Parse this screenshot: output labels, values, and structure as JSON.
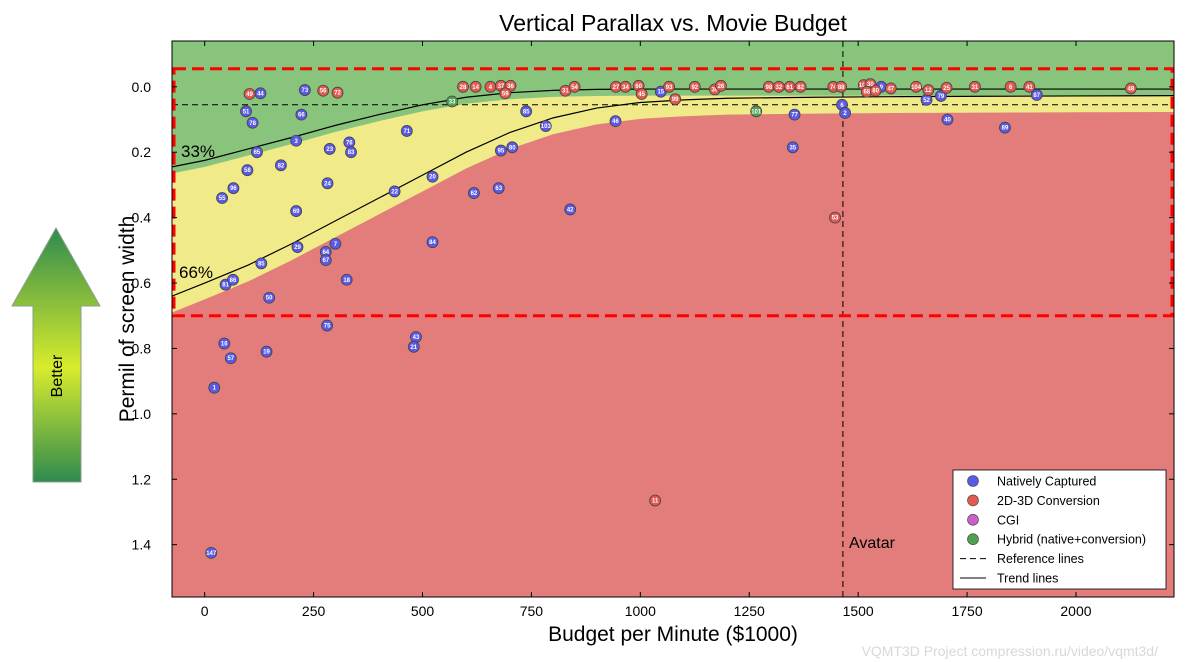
{
  "colors": {
    "natively_captured": "#5a5ae6",
    "conversion": "#e05a50",
    "cgi": "#c860c8",
    "hybrid": "#50a050",
    "bad_zone": "#e37d7b",
    "good_zone": "#7cc07a",
    "mid_zone": "#f0f08a",
    "highlight_box": "#ff0000"
  },
  "better_indicator": {
    "label": "Better",
    "icon": "up-arrow-icon"
  },
  "watermark": "VQMT3D Project compression.ru/video/vqmt3d/",
  "chart_data": {
    "type": "scatter",
    "title": "Vertical Parallax vs. Movie Budget",
    "xlabel": "Budget per Minute ($1000)",
    "ylabel": "Permil of screen width",
    "xlim": [
      -75,
      2225
    ],
    "ylim": [
      1.56,
      -0.14
    ],
    "y_inverted": true,
    "xticks": [
      0,
      250,
      500,
      750,
      1000,
      1250,
      1500,
      1750,
      2000
    ],
    "yticks": [
      0.0,
      0.2,
      0.4,
      0.6,
      0.8,
      1.0,
      1.2,
      1.4
    ],
    "ytick_labels": [
      "0.0",
      "0.2",
      "0.4",
      "0.6",
      "0.8",
      "1.0",
      "1.2",
      "1.4"
    ],
    "legend_position": "bottom-right",
    "legend": [
      {
        "label": "Natively Captured",
        "kind": "dot",
        "color_key": "natively_captured"
      },
      {
        "label": "2D-3D Conversion",
        "kind": "dot",
        "color_key": "conversion"
      },
      {
        "label": "CGI",
        "kind": "dot",
        "color_key": "cgi"
      },
      {
        "label": "Hybrid (native+conversion)",
        "kind": "dot",
        "color_key": "hybrid"
      },
      {
        "label": "Reference lines",
        "kind": "dashed"
      },
      {
        "label": "Trend lines",
        "kind": "solid"
      }
    ],
    "reference_lines": {
      "vertical_x": 1465,
      "vertical_label": "Avatar",
      "horizontal_y": 0.055
    },
    "highlight_box": {
      "x_from": -75,
      "x_to": 2225,
      "y_from": -0.055,
      "y_to": 0.7
    },
    "trend_lines": [
      {
        "name": "33%",
        "label": "33%",
        "x": [
          -75,
          0,
          100,
          200,
          300,
          400,
          500,
          600,
          700,
          800,
          900,
          1000,
          1200,
          1400,
          1600,
          1800,
          2000,
          2225
        ],
        "y": [
          0.245,
          0.225,
          0.19,
          0.155,
          0.118,
          0.085,
          0.055,
          0.032,
          0.018,
          0.011,
          0.008,
          0.007,
          0.007,
          0.007,
          0.007,
          0.007,
          0.007,
          0.007
        ]
      },
      {
        "name": "66%",
        "label": "66%",
        "x": [
          -75,
          0,
          100,
          200,
          300,
          400,
          500,
          600,
          700,
          800,
          900,
          1000,
          1100,
          1200,
          1400,
          1600,
          1800,
          2000,
          2225
        ],
        "y": [
          0.64,
          0.6,
          0.545,
          0.48,
          0.41,
          0.34,
          0.27,
          0.2,
          0.14,
          0.095,
          0.065,
          0.048,
          0.04,
          0.035,
          0.032,
          0.03,
          0.029,
          0.028,
          0.027
        ]
      }
    ],
    "points": [
      {
        "id": "1",
        "x": 22,
        "y": 0.92,
        "cat": "natively_captured"
      },
      {
        "id": "147",
        "x": 15,
        "y": 1.425,
        "cat": "natively_captured"
      },
      {
        "id": "16",
        "x": 45,
        "y": 0.785,
        "cat": "natively_captured"
      },
      {
        "id": "57",
        "x": 60,
        "y": 0.83,
        "cat": "natively_captured"
      },
      {
        "id": "19",
        "x": 142,
        "y": 0.81,
        "cat": "natively_captured"
      },
      {
        "id": "55",
        "x": 40,
        "y": 0.34,
        "cat": "natively_captured"
      },
      {
        "id": "96",
        "x": 66,
        "y": 0.31,
        "cat": "natively_captured"
      },
      {
        "id": "58",
        "x": 98,
        "y": 0.255,
        "cat": "natively_captured"
      },
      {
        "id": "81",
        "x": 48,
        "y": 0.605,
        "cat": "natively_captured"
      },
      {
        "id": "86",
        "x": 65,
        "y": 0.59,
        "cat": "natively_captured"
      },
      {
        "id": "85",
        "x": 130,
        "y": 0.54,
        "cat": "natively_captured"
      },
      {
        "id": "50",
        "x": 148,
        "y": 0.645,
        "cat": "natively_captured"
      },
      {
        "id": "29",
        "x": 213,
        "y": 0.49,
        "cat": "natively_captured"
      },
      {
        "id": "69",
        "x": 210,
        "y": 0.38,
        "cat": "natively_captured"
      },
      {
        "id": "64",
        "x": 278,
        "y": 0.505,
        "cat": "natively_captured"
      },
      {
        "id": "67",
        "x": 278,
        "y": 0.53,
        "cat": "natively_captured"
      },
      {
        "id": "7",
        "x": 300,
        "y": 0.48,
        "cat": "natively_captured"
      },
      {
        "id": "18",
        "x": 326,
        "y": 0.59,
        "cat": "natively_captured"
      },
      {
        "id": "75",
        "x": 281,
        "y": 0.73,
        "cat": "natively_captured"
      },
      {
        "id": "24",
        "x": 282,
        "y": 0.295,
        "cat": "natively_captured"
      },
      {
        "id": "22",
        "x": 436,
        "y": 0.32,
        "cat": "natively_captured"
      },
      {
        "id": "20",
        "x": 523,
        "y": 0.275,
        "cat": "natively_captured"
      },
      {
        "id": "84",
        "x": 523,
        "y": 0.475,
        "cat": "natively_captured"
      },
      {
        "id": "43",
        "x": 485,
        "y": 0.765,
        "cat": "natively_captured"
      },
      {
        "id": "21",
        "x": 480,
        "y": 0.795,
        "cat": "natively_captured"
      },
      {
        "id": "62",
        "x": 618,
        "y": 0.325,
        "cat": "natively_captured"
      },
      {
        "id": "63",
        "x": 675,
        "y": 0.31,
        "cat": "natively_captured"
      },
      {
        "id": "42",
        "x": 839,
        "y": 0.375,
        "cat": "natively_captured"
      },
      {
        "id": "82",
        "x": 175,
        "y": 0.24,
        "cat": "natively_captured"
      },
      {
        "id": "65",
        "x": 120,
        "y": 0.2,
        "cat": "natively_captured"
      },
      {
        "id": "3",
        "x": 210,
        "y": 0.165,
        "cat": "natively_captured"
      },
      {
        "id": "23",
        "x": 287,
        "y": 0.19,
        "cat": "natively_captured"
      },
      {
        "id": "76",
        "x": 332,
        "y": 0.17,
        "cat": "natively_captured"
      },
      {
        "id": "83",
        "x": 336,
        "y": 0.2,
        "cat": "natively_captured"
      },
      {
        "id": "71",
        "x": 464,
        "y": 0.135,
        "cat": "natively_captured"
      },
      {
        "id": "95",
        "x": 680,
        "y": 0.195,
        "cat": "natively_captured"
      },
      {
        "id": "80",
        "x": 706,
        "y": 0.185,
        "cat": "natively_captured"
      },
      {
        "id": "51",
        "x": 95,
        "y": 0.075,
        "cat": "natively_captured"
      },
      {
        "id": "78",
        "x": 110,
        "y": 0.11,
        "cat": "natively_captured"
      },
      {
        "id": "73",
        "x": 230,
        "y": 0.01,
        "cat": "natively_captured"
      },
      {
        "id": "44",
        "x": 128,
        "y": 0.02,
        "cat": "natively_captured"
      },
      {
        "id": "66",
        "x": 222,
        "y": 0.085,
        "cat": "natively_captured"
      },
      {
        "id": "85",
        "x": 738,
        "y": 0.075,
        "cat": "natively_captured"
      },
      {
        "id": "103",
        "x": 783,
        "y": 0.12,
        "cat": "natively_captured"
      },
      {
        "id": "46",
        "x": 943,
        "y": 0.105,
        "cat": "natively_captured"
      },
      {
        "id": "35",
        "x": 1350,
        "y": 0.185,
        "cat": "natively_captured"
      },
      {
        "id": "77",
        "x": 1354,
        "y": 0.085,
        "cat": "natively_captured"
      },
      {
        "id": "6",
        "x": 1463,
        "y": 0.055,
        "cat": "natively_captured"
      },
      {
        "id": "2",
        "x": 1470,
        "y": 0.08,
        "cat": "natively_captured"
      },
      {
        "id": "9",
        "x": 1553,
        "y": 0.0,
        "cat": "natively_captured"
      },
      {
        "id": "52",
        "x": 1657,
        "y": 0.04,
        "cat": "natively_captured"
      },
      {
        "id": "79",
        "x": 1690,
        "y": 0.028,
        "cat": "natively_captured"
      },
      {
        "id": "40",
        "x": 1705,
        "y": 0.1,
        "cat": "natively_captured"
      },
      {
        "id": "89",
        "x": 1837,
        "y": 0.125,
        "cat": "natively_captured"
      },
      {
        "id": "87",
        "x": 1910,
        "y": 0.025,
        "cat": "natively_captured"
      },
      {
        "id": "15",
        "x": 1047,
        "y": 0.015,
        "cat": "natively_captured"
      },
      {
        "id": "11",
        "x": 1034,
        "y": 1.265,
        "cat": "conversion"
      },
      {
        "id": "53",
        "x": 1447,
        "y": 0.4,
        "cat": "conversion"
      },
      {
        "id": "49",
        "x": 103,
        "y": 0.022,
        "cat": "conversion"
      },
      {
        "id": "56",
        "x": 272,
        "y": 0.012,
        "cat": "conversion"
      },
      {
        "id": "72",
        "x": 305,
        "y": 0.018,
        "cat": "conversion"
      },
      {
        "id": "28",
        "x": 593,
        "y": 0.0,
        "cat": "conversion"
      },
      {
        "id": "14",
        "x": 622,
        "y": 0.0,
        "cat": "conversion"
      },
      {
        "id": "4",
        "x": 656,
        "y": 0.0,
        "cat": "conversion"
      },
      {
        "id": "37",
        "x": 680,
        "y": -0.003,
        "cat": "conversion"
      },
      {
        "id": "36",
        "x": 702,
        "y": -0.003,
        "cat": "conversion"
      },
      {
        "id": "59",
        "x": 690,
        "y": 0.02,
        "cat": "conversion"
      },
      {
        "id": "31",
        "x": 828,
        "y": 0.012,
        "cat": "conversion"
      },
      {
        "id": "54",
        "x": 849,
        "y": 0.0,
        "cat": "conversion"
      },
      {
        "id": "27",
        "x": 944,
        "y": 0.0,
        "cat": "conversion"
      },
      {
        "id": "34",
        "x": 966,
        "y": 0.0,
        "cat": "conversion"
      },
      {
        "id": "60",
        "x": 996,
        "y": -0.003,
        "cat": "conversion"
      },
      {
        "id": "45",
        "x": 1003,
        "y": 0.022,
        "cat": "conversion"
      },
      {
        "id": "93",
        "x": 1066,
        "y": 0.0,
        "cat": "conversion"
      },
      {
        "id": "99",
        "x": 1080,
        "y": 0.038,
        "cat": "conversion"
      },
      {
        "id": "92",
        "x": 1125,
        "y": 0.0,
        "cat": "conversion"
      },
      {
        "id": "39",
        "x": 1171,
        "y": 0.008,
        "cat": "conversion"
      },
      {
        "id": "26",
        "x": 1185,
        "y": -0.003,
        "cat": "conversion"
      },
      {
        "id": "98",
        "x": 1295,
        "y": 0.0,
        "cat": "conversion"
      },
      {
        "id": "32",
        "x": 1318,
        "y": 0.0,
        "cat": "conversion"
      },
      {
        "id": "61",
        "x": 1343,
        "y": 0.0,
        "cat": "conversion"
      },
      {
        "id": "82",
        "x": 1368,
        "y": 0.0,
        "cat": "conversion"
      },
      {
        "id": "74",
        "x": 1443,
        "y": 0.0,
        "cat": "conversion"
      },
      {
        "id": "88",
        "x": 1461,
        "y": 0.0,
        "cat": "conversion"
      },
      {
        "id": "105",
        "x": 1513,
        "y": -0.005,
        "cat": "conversion"
      },
      {
        "id": "30",
        "x": 1528,
        "y": -0.008,
        "cat": "conversion"
      },
      {
        "id": "68",
        "x": 1520,
        "y": 0.015,
        "cat": "conversion"
      },
      {
        "id": "80",
        "x": 1540,
        "y": 0.012,
        "cat": "conversion"
      },
      {
        "id": "47",
        "x": 1575,
        "y": 0.005,
        "cat": "conversion"
      },
      {
        "id": "104",
        "x": 1633,
        "y": 0.0,
        "cat": "conversion"
      },
      {
        "id": "12",
        "x": 1661,
        "y": 0.01,
        "cat": "conversion"
      },
      {
        "id": "25",
        "x": 1703,
        "y": 0.003,
        "cat": "conversion"
      },
      {
        "id": "31",
        "x": 1768,
        "y": 0.0,
        "cat": "conversion"
      },
      {
        "id": "6",
        "x": 1850,
        "y": 0.0,
        "cat": "conversion"
      },
      {
        "id": "41",
        "x": 1893,
        "y": 0.0,
        "cat": "conversion"
      },
      {
        "id": "48",
        "x": 2126,
        "y": 0.005,
        "cat": "conversion"
      },
      {
        "id": "33",
        "x": 568,
        "y": 0.045,
        "cat": "hybrid"
      },
      {
        "id": "101",
        "x": 1266,
        "y": 0.075,
        "cat": "hybrid"
      }
    ]
  }
}
